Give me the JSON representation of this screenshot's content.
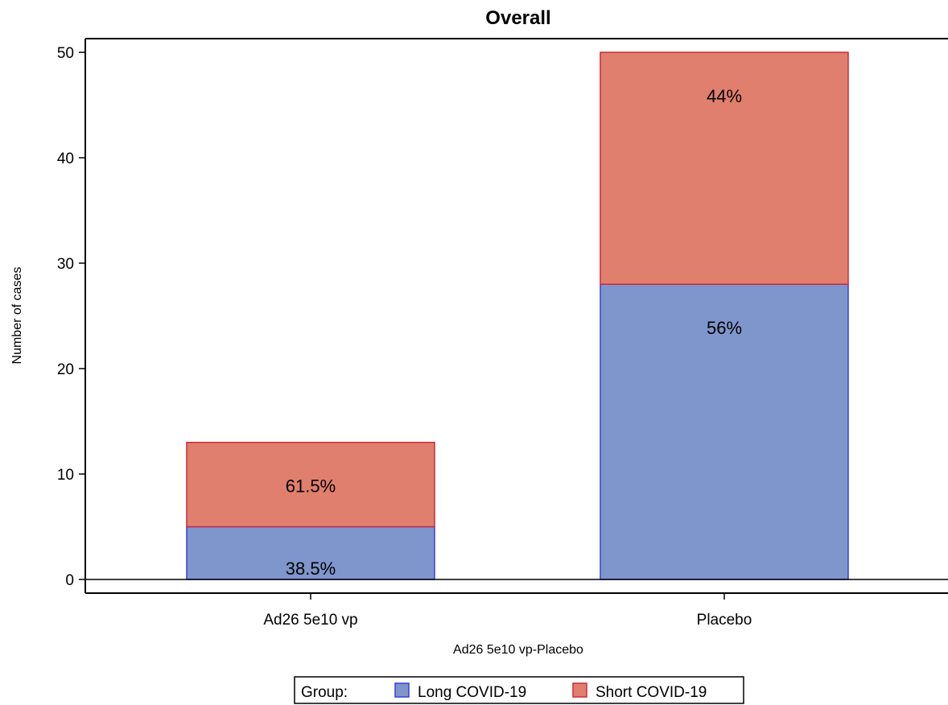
{
  "chart_data": {
    "type": "bar",
    "stacked": true,
    "title": "Overall",
    "xlabel": "Ad26 5e10 vp-Placebo",
    "ylabel": "Number of cases",
    "ylim": [
      0,
      50
    ],
    "yticks": [
      0,
      10,
      20,
      30,
      40,
      50
    ],
    "categories": [
      "Ad26 5e10 vp",
      "Placebo"
    ],
    "series": [
      {
        "name": "Long COVID-19",
        "color": "#7f96cc",
        "edge_color": "#3b3bdc",
        "values": [
          5,
          28
        ],
        "labels": [
          "38.5%",
          "56%"
        ]
      },
      {
        "name": "Short COVID-19",
        "color": "#e07f6e",
        "edge_color": "#cc2a3c",
        "values": [
          8,
          22
        ],
        "labels": [
          "61.5%",
          "44%"
        ]
      }
    ],
    "legend": {
      "title": "Group:",
      "position": "bottom"
    }
  }
}
